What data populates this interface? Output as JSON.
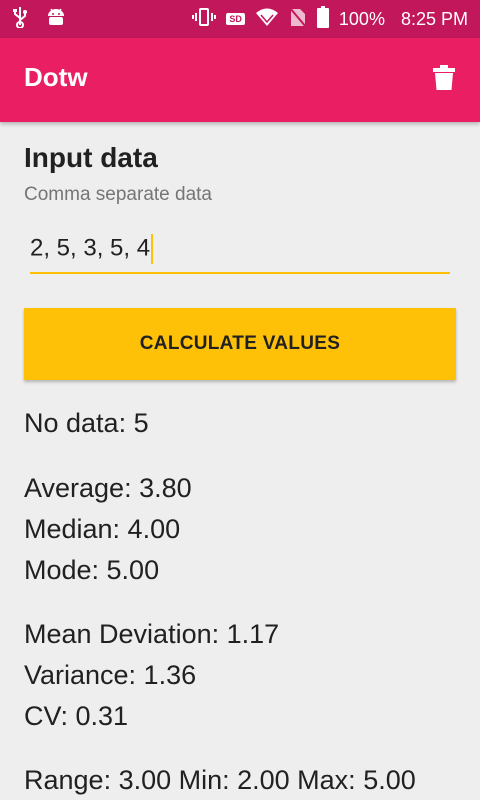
{
  "status_bar": {
    "battery": "100%",
    "time": "8:25 PM",
    "sd_label": "SD"
  },
  "app_bar": {
    "title": "Dotw"
  },
  "form": {
    "title": "Input data",
    "helper": "Comma separate data",
    "input_value": "2, 5, 3, 5, 4",
    "calculate_label": "CALCULATE VALUES"
  },
  "results": {
    "no_data": "No data: 5",
    "average": "Average: 3.80",
    "median": "Median: 4.00",
    "mode": "Mode: 5.00",
    "mean_deviation": "Mean Deviation: 1.17",
    "variance": "Variance: 1.36",
    "cv": "CV: 0.31",
    "range": "Range: 3.00 Min: 2.00 Max: 5.00"
  },
  "colors": {
    "status_bar": "#c2185b",
    "app_bar": "#e91e63",
    "accent": "#ffc107",
    "background": "#eeeeee"
  },
  "icons": [
    "usb-icon",
    "android-icon",
    "vibrate-icon",
    "sd-card-icon",
    "wifi-icon",
    "no-sim-icon",
    "battery-icon",
    "delete-icon"
  ]
}
